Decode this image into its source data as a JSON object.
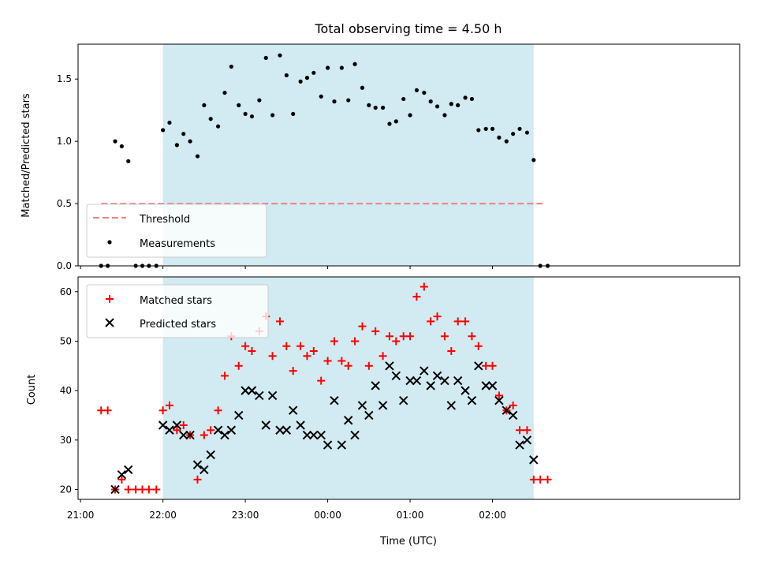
{
  "chart_data": {
    "title": "Total observing time = 4.50 h",
    "shared_x": {
      "label": "Time (UTC)",
      "ticks": [
        "21:00",
        "22:00",
        "23:00",
        "00:00",
        "01:00",
        "02:00"
      ],
      "tick_hours": [
        21,
        22,
        23,
        24,
        25,
        26
      ],
      "range": [
        20.97,
        29.0
      ],
      "shaded_interval": [
        22.0,
        26.5
      ],
      "shade_color": "#add8e6"
    },
    "panels": [
      {
        "type": "scatter",
        "ylabel": "Matched/Predicted stars",
        "ylim": [
          0,
          1.78
        ],
        "yticks": [
          0.0,
          0.5,
          1.0,
          1.5
        ],
        "ytick_labels": [
          "0.0",
          "0.5",
          "1.0",
          "1.5"
        ],
        "legend_position": "lower-left",
        "threshold": {
          "name": "Threshold",
          "value": 0.5,
          "x": [
            21.25,
            26.62
          ],
          "color": "#f08080"
        },
        "series": [
          {
            "name": "Measurements",
            "color": "#000000",
            "x": [
              21.25,
              21.33,
              21.42,
              21.5,
              21.58,
              21.67,
              21.75,
              21.83,
              21.92,
              22.0,
              22.08,
              22.17,
              22.25,
              22.33,
              22.42,
              22.5,
              22.58,
              22.67,
              22.75,
              22.83,
              22.92,
              23.0,
              23.08,
              23.17,
              23.25,
              23.33,
              23.42,
              23.5,
              23.58,
              23.67,
              23.75,
              23.83,
              23.92,
              24.0,
              24.08,
              24.17,
              24.25,
              24.33,
              24.42,
              24.5,
              24.58,
              24.67,
              24.75,
              24.83,
              24.92,
              25.0,
              25.08,
              25.17,
              25.25,
              25.33,
              25.42,
              25.5,
              25.58,
              25.67,
              25.75,
              25.83,
              25.92,
              26.0,
              26.08,
              26.17,
              26.25,
              26.33,
              26.42,
              26.5,
              26.58,
              26.67
            ],
            "values": [
              0,
              0,
              1.0,
              0.96,
              0.84,
              0,
              0,
              0,
              0,
              1.09,
              1.15,
              0.97,
              1.06,
              1.0,
              0.88,
              1.29,
              1.18,
              1.12,
              1.39,
              1.6,
              1.29,
              1.22,
              1.2,
              1.33,
              1.67,
              1.21,
              1.69,
              1.53,
              1.22,
              1.48,
              1.51,
              1.55,
              1.36,
              1.59,
              1.32,
              1.59,
              1.33,
              1.62,
              1.43,
              1.29,
              1.27,
              1.27,
              1.14,
              1.16,
              1.34,
              1.21,
              1.41,
              1.39,
              1.32,
              1.28,
              1.21,
              1.3,
              1.29,
              1.35,
              1.34,
              1.09,
              1.1,
              1.1,
              1.03,
              1.0,
              1.06,
              1.1,
              1.07,
              0.85,
              0,
              0
            ]
          }
        ]
      },
      {
        "type": "scatter",
        "ylabel": "Count",
        "ylim": [
          18,
          63
        ],
        "yticks": [
          20,
          30,
          40,
          50,
          60
        ],
        "ytick_labels": [
          "20",
          "30",
          "40",
          "50",
          "60"
        ],
        "legend_position": "upper-left",
        "series": [
          {
            "name": "Matched stars",
            "marker": "plus",
            "color": "#ff0000",
            "x": [
              21.25,
              21.33,
              21.42,
              21.5,
              21.58,
              21.67,
              21.75,
              21.83,
              21.92,
              22.0,
              22.08,
              22.17,
              22.25,
              22.33,
              22.42,
              22.5,
              22.58,
              22.67,
              22.75,
              22.83,
              22.92,
              23.0,
              23.08,
              23.17,
              23.25,
              23.33,
              23.42,
              23.5,
              23.58,
              23.67,
              23.75,
              23.83,
              23.92,
              24.0,
              24.08,
              24.17,
              24.25,
              24.33,
              24.42,
              24.5,
              24.58,
              24.67,
              24.75,
              24.83,
              24.92,
              25.0,
              25.08,
              25.17,
              25.25,
              25.33,
              25.42,
              25.5,
              25.58,
              25.67,
              25.75,
              25.83,
              25.92,
              26.0,
              26.08,
              26.17,
              26.25,
              26.33,
              26.42,
              26.5,
              26.58,
              26.67
            ],
            "values": [
              36,
              36,
              20,
              22,
              20,
              20,
              20,
              20,
              20,
              36,
              37,
              32,
              33,
              31,
              22,
              31,
              32,
              36,
              43,
              51,
              45,
              49,
              48,
              52,
              55,
              47,
              54,
              49,
              44,
              49,
              47,
              48,
              42,
              46,
              50,
              46,
              45,
              50,
              53,
              45,
              52,
              47,
              51,
              50,
              51,
              51,
              59,
              61,
              54,
              55,
              51,
              48,
              54,
              54,
              51,
              49,
              45,
              45,
              39,
              36,
              37,
              32,
              32,
              22,
              22,
              22
            ]
          },
          {
            "name": "Predicted stars",
            "marker": "x",
            "color": "#000000",
            "x": [
              21.42,
              21.5,
              21.58,
              22.0,
              22.08,
              22.17,
              22.25,
              22.33,
              22.42,
              22.5,
              22.58,
              22.67,
              22.75,
              22.83,
              22.92,
              23.0,
              23.08,
              23.17,
              23.25,
              23.33,
              23.42,
              23.5,
              23.58,
              23.67,
              23.75,
              23.83,
              23.92,
              24.0,
              24.08,
              24.17,
              24.25,
              24.33,
              24.42,
              24.5,
              24.58,
              24.67,
              24.75,
              24.83,
              24.92,
              25.0,
              25.08,
              25.17,
              25.25,
              25.33,
              25.42,
              25.5,
              25.58,
              25.67,
              25.75,
              25.83,
              25.92,
              26.0,
              26.08,
              26.17,
              26.25,
              26.33,
              26.42,
              26.5
            ],
            "values": [
              20,
              23,
              24,
              33,
              32,
              33,
              31,
              31,
              25,
              24,
              27,
              32,
              31,
              32,
              35,
              40,
              40,
              39,
              33,
              39,
              32,
              32,
              36,
              33,
              31,
              31,
              31,
              29,
              38,
              29,
              34,
              31,
              37,
              35,
              41,
              37,
              45,
              43,
              38,
              42,
              42,
              44,
              41,
              43,
              42,
              37,
              42,
              40,
              38,
              45,
              41,
              41,
              38,
              36,
              35,
              29,
              30,
              26
            ]
          }
        ]
      }
    ]
  }
}
